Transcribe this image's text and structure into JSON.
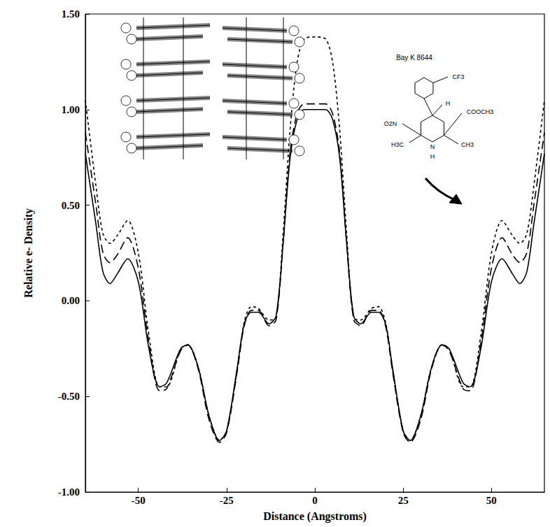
{
  "chart_data": {
    "type": "line",
    "x_label": "Distance (Angstroms)",
    "y_label": "Relative e- Density",
    "xlim": [
      -65,
      65
    ],
    "xticks": [
      -50,
      -25,
      0,
      25,
      50
    ],
    "ylim": [
      -1,
      1.5
    ],
    "yticks": [
      {
        "value": -1,
        "label": "-1.00"
      },
      {
        "value": -0.5,
        "label": "-0.50"
      },
      {
        "value": 0,
        "label": "0.00"
      },
      {
        "value": 0.5,
        "label": "0.50"
      },
      {
        "value": 1,
        "label": "1.00"
      },
      {
        "value": 1.5,
        "label": "1.50"
      }
    ],
    "grid": false,
    "annotations": [
      "Bay K 8644"
    ],
    "structure_labels": [
      "CF3",
      "H",
      "COOCH3",
      "O2N",
      "H3C",
      "CH3",
      "N",
      "H"
    ],
    "x": [
      -65,
      -62,
      -60,
      -58,
      -56,
      -53,
      -50,
      -47,
      -44,
      -42,
      -38,
      -36,
      -33,
      -30,
      -27,
      -25,
      -22,
      -20,
      -18,
      -16,
      -13,
      -11,
      -9,
      -7,
      -5,
      -3,
      0,
      3,
      5,
      7,
      9,
      11,
      13,
      16,
      18,
      20,
      22,
      25,
      27,
      30,
      33,
      36,
      38,
      42,
      44,
      47,
      50,
      53,
      56,
      58,
      60,
      62,
      65
    ],
    "series": [
      {
        "color": "#000000",
        "line_style": "solid",
        "values": [
          0.77,
          0.4,
          0.15,
          0.09,
          0.14,
          0.22,
          0.1,
          -0.25,
          -0.45,
          -0.43,
          -0.25,
          -0.23,
          -0.35,
          -0.6,
          -0.73,
          -0.68,
          -0.35,
          -0.12,
          -0.06,
          -0.06,
          -0.12,
          -0.08,
          0.3,
          0.75,
          0.95,
          1.0,
          1.0,
          1.0,
          0.95,
          0.75,
          0.3,
          -0.08,
          -0.12,
          -0.06,
          -0.06,
          -0.12,
          -0.35,
          -0.68,
          -0.73,
          -0.6,
          -0.35,
          -0.23,
          -0.25,
          -0.43,
          -0.45,
          -0.25,
          0.1,
          0.22,
          0.14,
          0.09,
          0.15,
          0.4,
          0.77
        ]
      },
      {
        "color": "#000000",
        "line_style": "dashed",
        "values": [
          0.88,
          0.5,
          0.25,
          0.2,
          0.24,
          0.33,
          0.17,
          -0.22,
          -0.47,
          -0.46,
          -0.26,
          -0.23,
          -0.36,
          -0.62,
          -0.74,
          -0.69,
          -0.37,
          -0.13,
          -0.05,
          -0.05,
          -0.13,
          -0.1,
          0.3,
          0.78,
          0.98,
          1.03,
          1.03,
          1.03,
          0.98,
          0.78,
          0.3,
          -0.1,
          -0.13,
          -0.05,
          -0.05,
          -0.13,
          -0.37,
          -0.69,
          -0.74,
          -0.62,
          -0.36,
          -0.23,
          -0.26,
          -0.46,
          -0.47,
          -0.22,
          0.17,
          0.33,
          0.24,
          0.2,
          0.25,
          0.5,
          0.88
        ]
      },
      {
        "color": "#000000",
        "line_style": "dotted",
        "values": [
          1.05,
          0.6,
          0.35,
          0.3,
          0.34,
          0.42,
          0.25,
          -0.18,
          -0.45,
          -0.45,
          -0.25,
          -0.23,
          -0.35,
          -0.6,
          -0.73,
          -0.68,
          -0.36,
          -0.11,
          -0.03,
          -0.04,
          -0.1,
          -0.09,
          0.35,
          0.9,
          1.25,
          1.37,
          1.38,
          1.37,
          1.25,
          0.9,
          0.35,
          -0.09,
          -0.1,
          -0.04,
          -0.03,
          -0.11,
          -0.36,
          -0.68,
          -0.73,
          -0.6,
          -0.35,
          -0.23,
          -0.25,
          -0.45,
          -0.45,
          -0.18,
          0.25,
          0.42,
          0.34,
          0.3,
          0.35,
          0.6,
          1.05
        ]
      }
    ]
  }
}
